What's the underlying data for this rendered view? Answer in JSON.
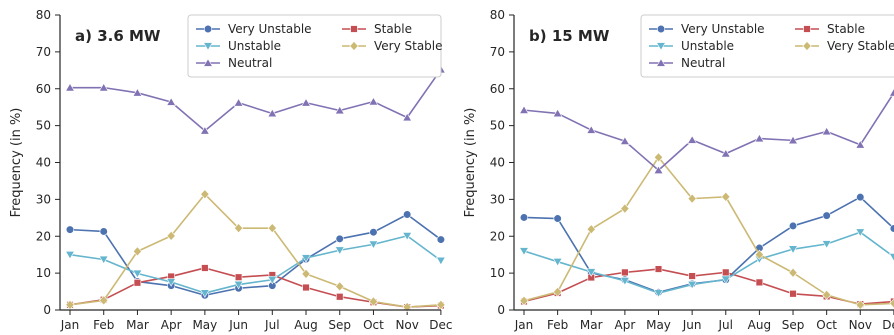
{
  "chart_data": [
    {
      "type": "line",
      "title": "a) 3.6 MW",
      "ylabel": "Frequency (in %)",
      "xlabel": "",
      "ylim": [
        0,
        80
      ],
      "yticks": [
        0,
        10,
        20,
        30,
        40,
        50,
        60,
        70,
        80
      ],
      "grid": false,
      "legend_position": "top-right",
      "categories": [
        "Jan",
        "Feb",
        "Mar",
        "Apr",
        "May",
        "Jun",
        "Jul",
        "Aug",
        "Sep",
        "Oct",
        "Nov",
        "Dec"
      ],
      "series": [
        {
          "name": "Very Unstable",
          "color": "#4c72b0",
          "marker": "circle",
          "values": [
            21.8,
            21.3,
            7.7,
            6.6,
            4.0,
            5.9,
            6.6,
            13.8,
            19.3,
            21.1,
            25.9,
            19.1
          ]
        },
        {
          "name": "Stable",
          "color": "#c44e52",
          "marker": "square",
          "values": [
            1.4,
            2.8,
            7.4,
            9.1,
            11.4,
            8.9,
            9.5,
            6.1,
            3.6,
            2.1,
            0.8,
            1.2
          ]
        },
        {
          "name": "Unstable",
          "color": "#64b5cd",
          "marker": "triangle-down",
          "values": [
            15.0,
            13.7,
            9.9,
            7.6,
            4.6,
            6.9,
            8.2,
            14.1,
            16.2,
            17.8,
            20.1,
            13.4
          ]
        },
        {
          "name": "Very Stable",
          "color": "#ccb974",
          "marker": "diamond",
          "values": [
            1.4,
            2.6,
            15.9,
            20.1,
            31.4,
            22.2,
            22.2,
            9.8,
            6.4,
            2.3,
            0.8,
            1.4
          ]
        },
        {
          "name": "Neutral",
          "color": "#8172b3",
          "marker": "triangle-up",
          "values": [
            60.3,
            60.3,
            58.9,
            56.4,
            48.6,
            56.2,
            53.3,
            56.2,
            54.1,
            56.5,
            52.2,
            65.2
          ]
        }
      ]
    },
    {
      "type": "line",
      "title": "b) 15 MW",
      "ylabel": "Frequency (in %)",
      "xlabel": "",
      "ylim": [
        0,
        80
      ],
      "yticks": [
        0,
        10,
        20,
        30,
        40,
        50,
        60,
        70,
        80
      ],
      "grid": false,
      "legend_position": "top-right",
      "categories": [
        "Jan",
        "Feb",
        "Mar",
        "Apr",
        "May",
        "Jun",
        "Jul",
        "Aug",
        "Sep",
        "Oct",
        "Nov",
        "Dec"
      ],
      "series": [
        {
          "name": "Very Unstable",
          "color": "#4c72b0",
          "marker": "circle",
          "values": [
            25.1,
            24.8,
            10.0,
            8.2,
            4.8,
            7.1,
            8.2,
            16.8,
            22.8,
            25.6,
            30.6,
            22.1
          ]
        },
        {
          "name": "Stable",
          "color": "#c44e52",
          "marker": "square",
          "values": [
            2.3,
            4.6,
            8.8,
            10.2,
            11.1,
            9.2,
            10.2,
            7.5,
            4.4,
            3.7,
            1.6,
            2.3
          ]
        },
        {
          "name": "Unstable",
          "color": "#64b5cd",
          "marker": "triangle-down",
          "values": [
            16.0,
            13.1,
            10.3,
            7.9,
            4.6,
            6.9,
            8.3,
            13.8,
            16.5,
            17.9,
            21.1,
            14.4
          ]
        },
        {
          "name": "Very Stable",
          "color": "#ccb974",
          "marker": "diamond",
          "values": [
            2.5,
            4.9,
            21.9,
            27.5,
            41.4,
            30.2,
            30.7,
            15.0,
            10.1,
            4.1,
            1.4,
            1.8
          ]
        },
        {
          "name": "Neutral",
          "color": "#8172b3",
          "marker": "triangle-up",
          "values": [
            54.2,
            53.3,
            48.8,
            45.8,
            37.9,
            46.1,
            42.4,
            46.5,
            46.0,
            48.4,
            44.8,
            58.9
          ]
        }
      ]
    }
  ]
}
